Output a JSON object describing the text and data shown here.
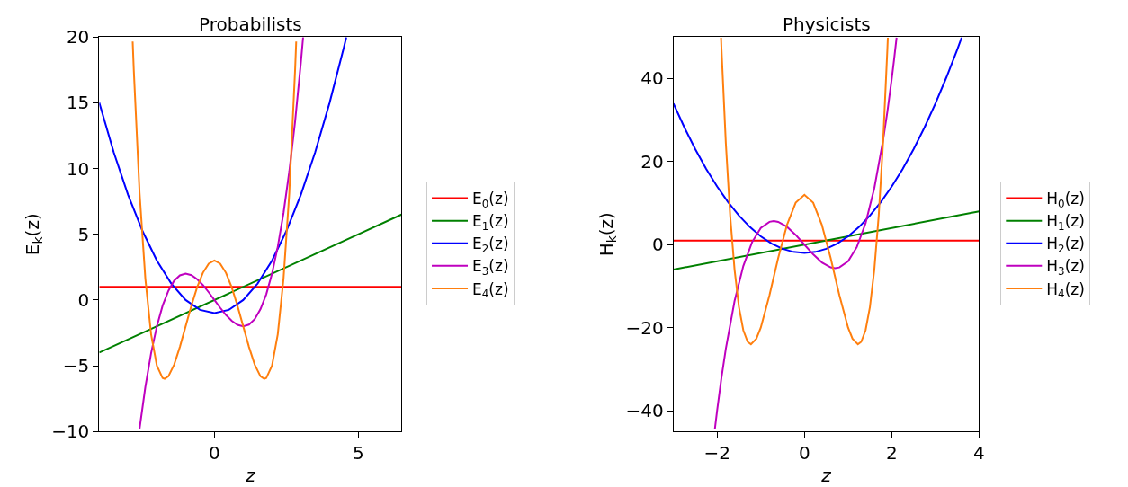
{
  "chart_data": [
    {
      "type": "line",
      "title": "Probabilists",
      "xlabel": "z",
      "ylabel": "E$_{k}$(z)",
      "xlim": [
        -4,
        6.5
      ],
      "ylim": [
        -10,
        20
      ],
      "xticks": [
        0,
        5
      ],
      "yticks": [
        -10,
        -5,
        0,
        5,
        10,
        15,
        20
      ],
      "grid": false,
      "legend": "right",
      "marker": "none",
      "line_style": "solid",
      "series": [
        {
          "name": "E$_{0}$(z)",
          "color": "#ff0000",
          "x": [
            -4,
            6.5
          ],
          "values": [
            1,
            1
          ]
        },
        {
          "name": "E$_{1}$(z)",
          "color": "#008000",
          "x": [
            -4,
            6.5
          ],
          "values": [
            -4,
            6.5
          ]
        },
        {
          "name": "E$_{2}$(z)",
          "color": "#0000ff",
          "x": [
            -4,
            -3.5,
            -3,
            -2.5,
            -2,
            -1.5,
            -1,
            -0.5,
            0,
            0.5,
            1,
            1.5,
            2,
            2.5,
            3,
            3.5,
            4,
            4.5,
            4.58
          ],
          "values": [
            15,
            11.25,
            8,
            5.25,
            3,
            1.25,
            0,
            -0.75,
            -1,
            -0.75,
            0,
            1.25,
            3,
            5.25,
            8,
            11.25,
            15,
            19.25,
            19.98
          ]
        },
        {
          "name": "E$_{3}$(z)",
          "color": "#bf00bf",
          "x": [
            -2.6,
            -2.4,
            -2.2,
            -2,
            -1.8,
            -1.6,
            -1.4,
            -1.2,
            -1,
            -0.8,
            -0.6,
            -0.4,
            -0.2,
            0,
            0.2,
            0.4,
            0.6,
            0.8,
            1,
            1.2,
            1.4,
            1.6,
            1.8,
            2,
            2.2,
            2.4,
            2.6,
            2.8,
            3,
            3.08
          ],
          "values": [
            -9.78,
            -6.62,
            -4.05,
            -2,
            -0.43,
            0.7,
            1.46,
            1.87,
            2,
            1.89,
            1.58,
            1.14,
            0.59,
            0,
            -0.59,
            -1.14,
            -1.58,
            -1.89,
            -2,
            -1.87,
            -1.46,
            -0.7,
            0.43,
            2,
            4.05,
            6.62,
            9.78,
            13.55,
            18,
            19.98
          ]
        },
        {
          "name": "E$_{4}$(z)",
          "color": "#ff7f0e",
          "x": [
            -2.84,
            -2.8,
            -2.6,
            -2.4,
            -2.2,
            -2,
            -1.8,
            -1.73,
            -1.6,
            -1.4,
            -1.2,
            -1,
            -0.8,
            -0.6,
            -0.4,
            -0.2,
            0,
            0.2,
            0.4,
            0.6,
            0.8,
            1,
            1.2,
            1.4,
            1.6,
            1.73,
            1.8,
            2,
            2.2,
            2.4,
            2.6,
            2.8,
            2.84
          ],
          "values": [
            19.66,
            17.43,
            8.14,
            1.62,
            -2.61,
            -5,
            -5.94,
            -6,
            -5.81,
            -4.92,
            -3.57,
            -2,
            -0.43,
            0.97,
            2.07,
            2.76,
            3,
            2.76,
            2.07,
            0.97,
            -0.43,
            -2,
            -3.57,
            -4.92,
            -5.81,
            -6,
            -5.94,
            -5,
            -2.61,
            1.62,
            8.14,
            17.43,
            19.66
          ]
        }
      ]
    },
    {
      "type": "line",
      "title": "Physicists",
      "xlabel": "z",
      "ylabel": "H$_{k}$(z)",
      "xlim": [
        -3,
        4
      ],
      "ylim": [
        -45,
        50
      ],
      "xticks": [
        -2,
        0,
        2,
        4
      ],
      "yticks": [
        -40,
        -20,
        0,
        20,
        40
      ],
      "grid": false,
      "legend": "right",
      "marker": "none",
      "line_style": "solid",
      "series": [
        {
          "name": "H$_{0}$(z)",
          "color": "#ff0000",
          "x": [
            -3,
            4
          ],
          "values": [
            1,
            1
          ]
        },
        {
          "name": "H$_{1}$(z)",
          "color": "#008000",
          "x": [
            -3,
            4
          ],
          "values": [
            -6,
            8
          ]
        },
        {
          "name": "H$_{2}$(z)",
          "color": "#0000ff",
          "x": [
            -3,
            -2.75,
            -2.5,
            -2.25,
            -2,
            -1.75,
            -1.5,
            -1.25,
            -1,
            -0.75,
            -0.5,
            -0.25,
            0,
            0.25,
            0.5,
            0.75,
            1,
            1.25,
            1.5,
            1.75,
            2,
            2.25,
            2.5,
            2.75,
            3,
            3.25,
            3.5,
            3.6
          ],
          "values": [
            34,
            28.25,
            23,
            18.25,
            14,
            10.25,
            7,
            4.25,
            2,
            0.25,
            -1,
            -1.75,
            -2,
            -1.75,
            -1,
            0.25,
            2,
            4.25,
            7,
            10.25,
            14,
            18.25,
            23,
            28.25,
            34,
            40.25,
            47,
            49.84
          ]
        },
        {
          "name": "H$_{3}$(z)",
          "color": "#bf00bf",
          "x": [
            -2.05,
            -2,
            -1.9,
            -1.8,
            -1.6,
            -1.4,
            -1.2,
            -1,
            -0.8,
            -0.7,
            -0.6,
            -0.4,
            -0.2,
            0,
            0.2,
            0.4,
            0.6,
            0.7,
            0.8,
            1,
            1.2,
            1.4,
            1.6,
            1.8,
            1.9,
            2,
            2.05,
            2.11
          ],
          "values": [
            -44.32,
            -40,
            -32.07,
            -25.06,
            -13.57,
            -5.15,
            0.58,
            4,
            5.5,
            5.66,
            5.47,
            4.29,
            2.34,
            0,
            -2.34,
            -4.29,
            -5.47,
            -5.66,
            -5.5,
            -4,
            -0.58,
            5.15,
            13.57,
            25.06,
            32.07,
            40,
            44.32,
            49.83
          ]
        },
        {
          "name": "H$_{4}$(z)",
          "color": "#ff7f0e",
          "x": [
            -1.91,
            -1.9,
            -1.8,
            -1.7,
            -1.6,
            -1.5,
            -1.4,
            -1.3,
            -1.2247,
            -1.1,
            -1,
            -0.8,
            -0.6,
            -0.4,
            -0.2,
            0,
            0.2,
            0.4,
            0.6,
            0.8,
            1,
            1.1,
            1.2247,
            1.3,
            1.4,
            1.5,
            1.6,
            1.7,
            1.8,
            1.9,
            1.91
          ],
          "values": [
            49.83,
            47.23,
            24.44,
            6.91,
            -6.02,
            -15,
            -20.61,
            -23.42,
            -24,
            -22.65,
            -20,
            -12.17,
            -3.21,
            4.73,
            10.11,
            12,
            10.11,
            4.73,
            -3.21,
            -12.17,
            -20,
            -22.65,
            -24,
            -23.42,
            -20.61,
            -15,
            -6.02,
            6.91,
            24.44,
            47.23,
            49.83
          ]
        }
      ]
    }
  ]
}
